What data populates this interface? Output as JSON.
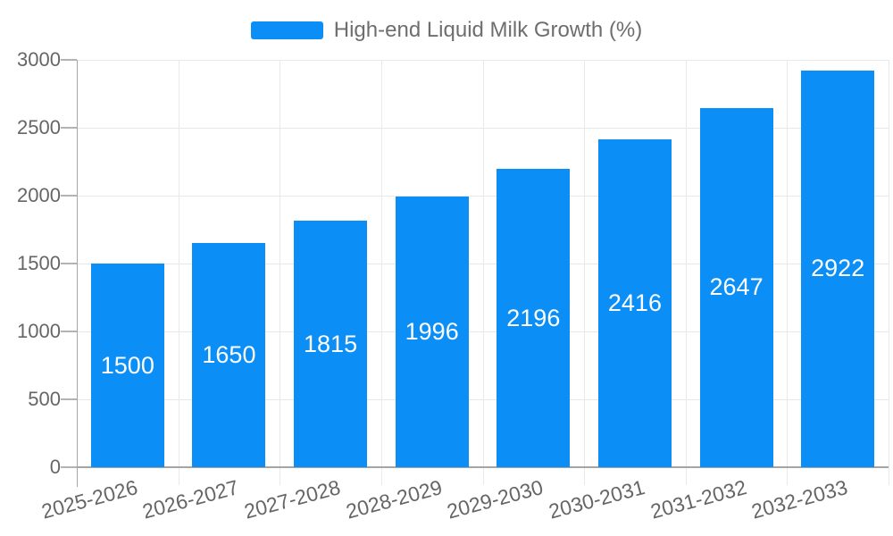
{
  "legend": {
    "label": "High-end Liquid Milk Growth (%)",
    "swatch_color": "#0b8ff7"
  },
  "chart_data": {
    "type": "bar",
    "title": "High-end Liquid Milk Growth (%)",
    "categories": [
      "2025-2026",
      "2026-2027",
      "2027-2028",
      "2028-2029",
      "2029-2030",
      "2030-2031",
      "2031-2032",
      "2032-2033"
    ],
    "values": [
      1500,
      1650,
      1815,
      1996,
      2196,
      2416,
      2647,
      2922
    ],
    "yticks": [
      0,
      500,
      1000,
      1500,
      2000,
      2500,
      3000
    ],
    "ylim": [
      0,
      3000
    ],
    "xlabel": "",
    "ylabel": "",
    "grid": true,
    "legend_position": "top-center",
    "bar_color": "#0b8ff7",
    "value_label_color": "#ffffff",
    "axis_line_color": "#a5a5a5",
    "gridline_color": "#e7e7e7",
    "tick_label_color": "#666666"
  }
}
